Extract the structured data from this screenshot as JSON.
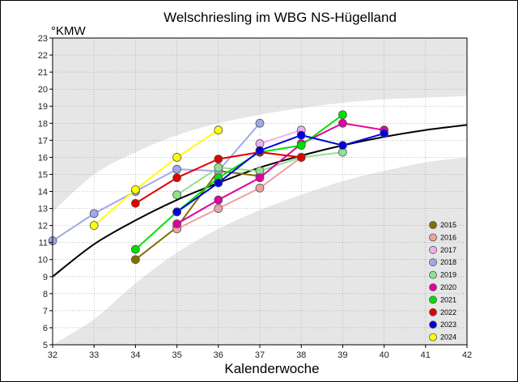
{
  "chart_data": {
    "type": "line",
    "title": "Welschriesling im WBG NS-Hügelland",
    "ylabel": "°KMW",
    "xlabel": "Kalenderwoche",
    "xlim": [
      32,
      42
    ],
    "ylim": [
      5,
      23
    ],
    "xticks": [
      "32",
      "33",
      "34",
      "35",
      "36",
      "37",
      "38",
      "39",
      "40",
      "41",
      "42"
    ],
    "yticks": [
      "5",
      "6",
      "7",
      "8",
      "9",
      "10",
      "11",
      "12",
      "13",
      "14",
      "15",
      "16",
      "17",
      "18",
      "19",
      "20",
      "21",
      "22",
      "23"
    ],
    "grid": true,
    "legend_position": "bottom-right",
    "reference_curve": {
      "color": "#000000",
      "points": [
        [
          32,
          9.0
        ],
        [
          33,
          10.9
        ],
        [
          34,
          12.3
        ],
        [
          35,
          13.5
        ],
        [
          36,
          14.5
        ],
        [
          37,
          15.4
        ],
        [
          38,
          16.1
        ],
        [
          39,
          16.7
        ],
        [
          40,
          17.2
        ],
        [
          41,
          17.6
        ],
        [
          42,
          17.9
        ]
      ]
    },
    "band": {
      "color": "#e6e6e6",
      "upper": [
        [
          32,
          12.8
        ],
        [
          33,
          15.0
        ],
        [
          34,
          16.3
        ],
        [
          35,
          17.3
        ],
        [
          36,
          18.0
        ],
        [
          37,
          18.5
        ],
        [
          38,
          18.9
        ],
        [
          39,
          19.2
        ],
        [
          40,
          19.4
        ],
        [
          41,
          19.5
        ],
        [
          42,
          19.6
        ]
      ],
      "lower": [
        [
          32,
          5.0
        ],
        [
          33,
          6.5
        ],
        [
          34,
          8.6
        ],
        [
          35,
          10.4
        ],
        [
          36,
          11.8
        ],
        [
          37,
          12.9
        ],
        [
          38,
          13.8
        ],
        [
          39,
          14.6
        ],
        [
          40,
          15.2
        ],
        [
          41,
          15.7
        ],
        [
          42,
          16.0
        ]
      ]
    },
    "series": [
      {
        "name": "2015",
        "color": "#807000",
        "x": [
          34,
          35,
          36,
          37
        ],
        "y": [
          10.0,
          11.9,
          15.2,
          14.9
        ]
      },
      {
        "name": "2016",
        "color": "#f0a0a0",
        "x": [
          35,
          36,
          37,
          38
        ],
        "y": [
          11.8,
          13.0,
          14.2,
          16.0
        ]
      },
      {
        "name": "2017",
        "color": "#f0b0f0",
        "x": [
          37,
          38
        ],
        "y": [
          16.8,
          17.6
        ]
      },
      {
        "name": "2018",
        "color": "#a0a8e8",
        "x": [
          32,
          33,
          34,
          35,
          36,
          37
        ],
        "y": [
          11.1,
          12.7,
          14.0,
          15.3,
          15.2,
          18.0
        ]
      },
      {
        "name": "2019",
        "color": "#90e090",
        "x": [
          35,
          36,
          37,
          38,
          39
        ],
        "y": [
          13.8,
          15.4,
          15.2,
          16.0,
          16.3
        ]
      },
      {
        "name": "2020",
        "color": "#e000a0",
        "x": [
          35,
          36,
          37,
          38,
          39,
          40
        ],
        "y": [
          12.1,
          13.5,
          14.8,
          16.8,
          18.0,
          17.6
        ]
      },
      {
        "name": "2021",
        "color": "#00e000",
        "x": [
          34,
          35,
          36,
          37,
          38,
          39
        ],
        "y": [
          10.6,
          12.8,
          14.8,
          16.3,
          16.7,
          18.5
        ]
      },
      {
        "name": "2022",
        "color": "#e00000",
        "x": [
          34,
          35,
          36,
          37,
          38
        ],
        "y": [
          13.3,
          14.8,
          15.9,
          16.3,
          16.0
        ]
      },
      {
        "name": "2023",
        "color": "#0000e0",
        "x": [
          35,
          36,
          37,
          38,
          39,
          40
        ],
        "y": [
          12.8,
          14.5,
          16.4,
          17.3,
          16.7,
          17.4
        ]
      },
      {
        "name": "2024",
        "color": "#ffff00",
        "x": [
          33,
          34,
          35,
          36
        ],
        "y": [
          12.0,
          14.1,
          16.0,
          17.6
        ]
      }
    ]
  }
}
